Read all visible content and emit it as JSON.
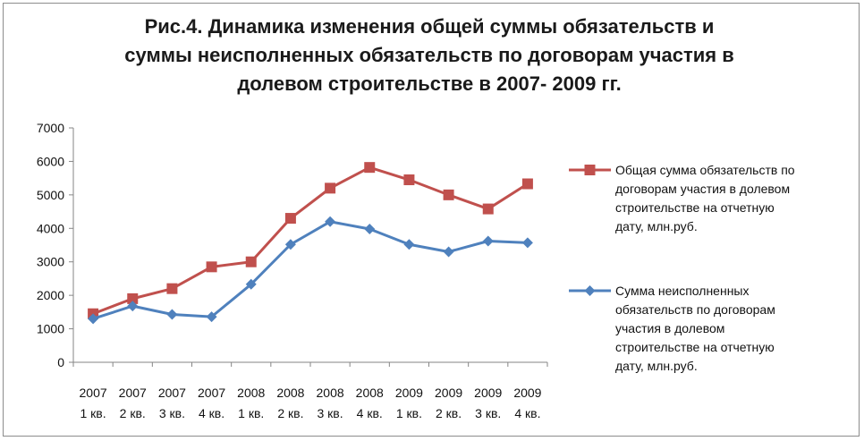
{
  "chart_data": {
    "type": "line",
    "title": "Рис.4. Динамика изменения общей суммы обязательств и суммы неисполненных обязательств по договорам участия в долевом строительстве в 2007- 2009 гг.",
    "title_lines": [
      "Рис.4. Динамика изменения общей суммы обязательств и",
      "суммы неисполненных обязательств по договорам участия в",
      "долевом строительстве в 2007- 2009 гг."
    ],
    "categories": [
      [
        "2007",
        "1 кв."
      ],
      [
        "2007",
        "2 кв."
      ],
      [
        "2007",
        "3 кв."
      ],
      [
        "2007",
        "4 кв."
      ],
      [
        "2008",
        "1 кв."
      ],
      [
        "2008",
        "2 кв."
      ],
      [
        "2008",
        "3 кв."
      ],
      [
        "2008",
        "4 кв."
      ],
      [
        "2009",
        "1 кв."
      ],
      [
        "2009",
        "2 кв."
      ],
      [
        "2009",
        "3 кв."
      ],
      [
        "2009",
        "4 кв."
      ]
    ],
    "yticks": [
      "0",
      "1000",
      "2000",
      "3000",
      "4000",
      "5000",
      "6000",
      "7000"
    ],
    "ylim": [
      0,
      7000
    ],
    "grid": false,
    "legend_position": "right",
    "series": [
      {
        "name": "Общая сумма обязательств по договорам участия в долевом строительстве на отчетную дату, млн.руб.",
        "legend_lines": [
          "Общая сумма обязательств по",
          "договорам участия в долевом",
          "строительстве на отчетную",
          "дату, млн.руб."
        ],
        "color": "#c0504d",
        "marker": "square",
        "values": [
          1450,
          1900,
          2200,
          2850,
          3000,
          4300,
          5200,
          5820,
          5450,
          5000,
          4580,
          5330
        ]
      },
      {
        "name": "Сумма неисполненных обязательств по договорам участия в долевом строительстве на отчетную дату, млн.руб.",
        "legend_lines": [
          "Сумма неисполненных",
          "обязательств по договорам",
          "участия в долевом",
          "строительстве на отчетную",
          "дату, млн.руб."
        ],
        "color": "#4f81bd",
        "marker": "diamond",
        "values": [
          1300,
          1680,
          1430,
          1360,
          2330,
          3520,
          4200,
          3980,
          3520,
          3300,
          3620,
          3570
        ]
      }
    ]
  }
}
